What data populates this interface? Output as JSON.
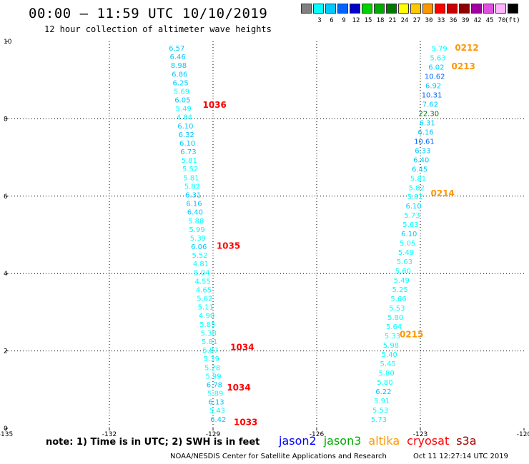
{
  "header": {
    "title": "00:00 – 11:59 UTC 10/10/2019",
    "subtitle": "12 hour collection of altimeter wave heights"
  },
  "legend": {
    "unit": "(ft)",
    "bins": [
      {
        "label": "",
        "color": "#808080"
      },
      {
        "label": "3",
        "color": "#00ffff"
      },
      {
        "label": "6",
        "color": "#00c8ff"
      },
      {
        "label": "9",
        "color": "#0064ff"
      },
      {
        "label": "12",
        "color": "#0000c8"
      },
      {
        "label": "15",
        "color": "#00d200"
      },
      {
        "label": "18",
        "color": "#00aa00"
      },
      {
        "label": "21",
        "color": "#007800"
      },
      {
        "label": "24",
        "color": "#ffff00"
      },
      {
        "label": "27",
        "color": "#ffc800"
      },
      {
        "label": "30",
        "color": "#ff9600"
      },
      {
        "label": "33",
        "color": "#ff0000"
      },
      {
        "label": "36",
        "color": "#c80000"
      },
      {
        "label": "39",
        "color": "#8c0000"
      },
      {
        "label": "42",
        "color": "#a000a0"
      },
      {
        "label": "45",
        "color": "#e050e0"
      },
      {
        "label": "70",
        "color": "#ffb4ff"
      },
      {
        "label": "",
        "color": "#000000"
      }
    ]
  },
  "axes": {
    "x_ticks": [
      "-135",
      "-132",
      "-129",
      "-126",
      "-123",
      "-120"
    ],
    "y_ticks": [
      "0",
      "2",
      "4",
      "6",
      "8",
      "10"
    ],
    "xlim": [
      -135,
      -120
    ],
    "ylim": [
      0,
      10
    ]
  },
  "tracks": [
    {
      "values": [
        "6.57",
        "6.46",
        "8.98",
        "6.86",
        "6.25",
        "5.69",
        "6.05",
        "5.49",
        "4.84",
        "6.10",
        "6.32",
        "6.10",
        "6.73",
        "5.81",
        "5.52",
        "5.81",
        "5.82",
        "6.31",
        "6.16",
        "6.40",
        "5.88",
        "5.99",
        "5.39",
        "6.06",
        "5.52",
        "4.81",
        "5.04",
        "4.55",
        "4.65",
        "5.62",
        "5.11",
        "4.90",
        "5.85",
        "5.38",
        "5.81",
        "5.87",
        "5.39",
        "5.28",
        "5.99",
        "6.78",
        "5.89",
        "6.13",
        "5.43",
        "6.42"
      ],
      "lon_top": -130.05,
      "lat_top": 9.76,
      "lon_bottom": -128.85,
      "lat_bottom": 0.17
    },
    {
      "values": [
        "5.79",
        "5.63",
        "6.02",
        "10.62",
        "6.92",
        "10.31",
        "7.62",
        "22.30",
        "6.31",
        "6.16",
        "10.61",
        "6.33",
        "6.40",
        "6.45",
        "5.81",
        "5.82",
        "5.82",
        "6.10",
        "5.73",
        "5.63",
        "6.10",
        "5.05",
        "5.49",
        "5.63",
        "5.60",
        "5.49",
        "5.25",
        "5.66",
        "5.53",
        "5.80",
        "5.64",
        "5.33",
        "5.98",
        "5.40",
        "5.45",
        "5.80",
        "5.80",
        "6.22",
        "5.91",
        "5.53",
        "5.73"
      ],
      "lon_top": -122.45,
      "lat_top": 9.75,
      "lon_bottom": -124.2,
      "lat_bottom": 0.17
    }
  ],
  "time_tags": [
    {
      "text": "1036",
      "lon": -129.3,
      "lat": 8.28,
      "color": "#ff0000"
    },
    {
      "text": "1035",
      "lon": -128.9,
      "lat": 4.64,
      "color": "#ff0000"
    },
    {
      "text": "1034",
      "lon": -128.5,
      "lat": 2.02,
      "color": "#ff0000"
    },
    {
      "text": "1034",
      "lon": -128.6,
      "lat": 0.98,
      "color": "#ff0000"
    },
    {
      "text": "1033",
      "lon": -128.4,
      "lat": 0.08,
      "color": "#ff0000"
    },
    {
      "text": "0212",
      "lon": -122.0,
      "lat": 9.76,
      "color": "#ff9600"
    },
    {
      "text": "0213",
      "lon": -122.1,
      "lat": 9.28,
      "color": "#ff9600"
    },
    {
      "text": "0214",
      "lon": -122.7,
      "lat": 6.0,
      "color": "#ff9600"
    },
    {
      "text": "0215",
      "lon": -123.6,
      "lat": 2.35,
      "color": "#ff9600"
    }
  ],
  "footer": {
    "note": "note: 1) Time is in UTC; 2) SWH is in feet",
    "satellites": [
      {
        "name": "jason2",
        "color": "#0000ff"
      },
      {
        "name": "jason3",
        "color": "#00aa00"
      },
      {
        "name": "altika",
        "color": "#ff9600"
      },
      {
        "name": "cryosat",
        "color": "#ff0000"
      },
      {
        "name": "s3a",
        "color": "#a00000"
      }
    ],
    "credit": "NOAA/NESDIS Center for Satellite Applications and Research",
    "timestamp": "Oct 11 12:27:14 UTC 2019"
  }
}
